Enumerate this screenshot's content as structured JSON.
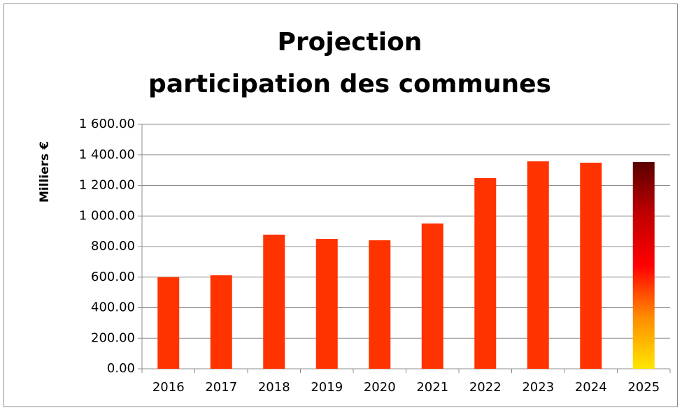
{
  "chart_data": {
    "type": "bar",
    "title": [
      "Projection",
      "participation des communes"
    ],
    "y_label": "Milliers €",
    "categories": [
      "2016",
      "2017",
      "2018",
      "2019",
      "2020",
      "2021",
      "2022",
      "2023",
      "2024",
      "2025"
    ],
    "values": [
      600,
      612,
      878,
      850,
      841,
      951,
      1248,
      1358,
      1349,
      1353
    ],
    "color": "#ff3300",
    "gradient_bar": {
      "index": 9,
      "colors": [
        "#ffe600",
        "#ff8c00",
        "#ff0000",
        "#c00000",
        "#5a0000"
      ]
    },
    "ylim": [
      0,
      1600
    ],
    "yticks": [
      {
        "value": 0,
        "label": "0.00"
      },
      {
        "value": 200,
        "label": "200.00"
      },
      {
        "value": 400,
        "label": "400.00"
      },
      {
        "value": 600,
        "label": "600.00"
      },
      {
        "value": 800,
        "label": "800.00"
      },
      {
        "value": 1000,
        "label": "1 000.00"
      },
      {
        "value": 1200,
        "label": "1 200.00"
      },
      {
        "value": 1400,
        "label": "1 400.00"
      },
      {
        "value": 1600,
        "label": "1 600.00"
      }
    ],
    "grid": true
  }
}
